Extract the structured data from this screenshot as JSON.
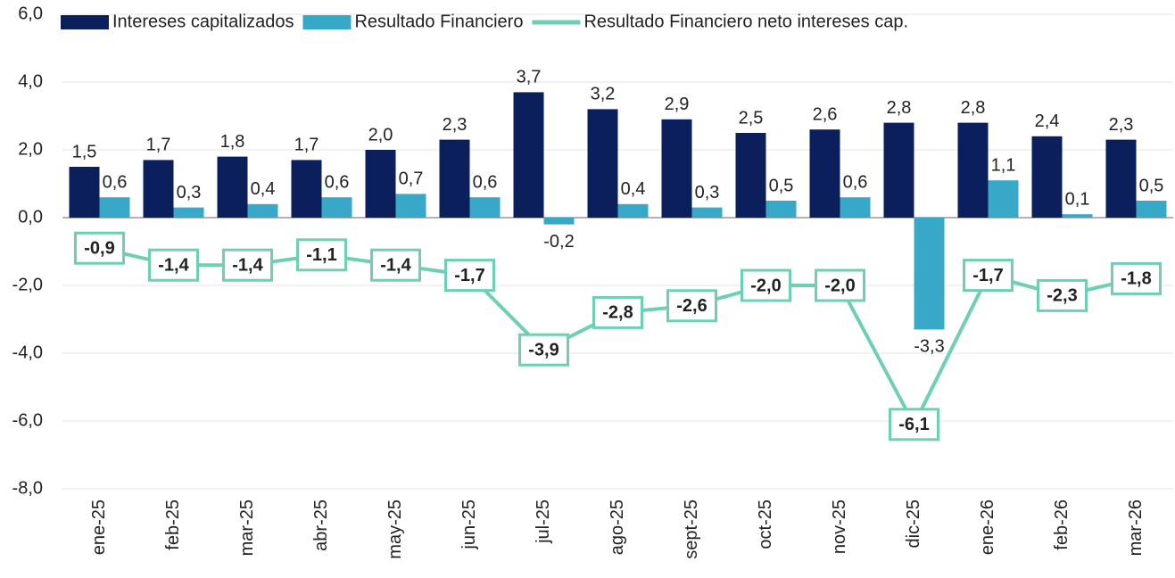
{
  "chart_data": {
    "type": "bar",
    "categories": [
      "ene-25",
      "feb-25",
      "mar-25",
      "abr-25",
      "may-25",
      "jun-25",
      "jul-25",
      "ago-25",
      "sept-25",
      "oct-25",
      "nov-25",
      "dic-25",
      "ene-26",
      "feb-26",
      "mar-26"
    ],
    "series": [
      {
        "name": "Intereses capitalizados",
        "type": "bar",
        "color": "#0b1f5c",
        "values": [
          1.5,
          1.7,
          1.8,
          1.7,
          2.0,
          2.3,
          3.7,
          3.2,
          2.9,
          2.5,
          2.6,
          2.8,
          2.8,
          2.4,
          2.3
        ],
        "value_labels": [
          "1,5",
          "1,7",
          "1,8",
          "1,7",
          "2,0",
          "2,3",
          "3,7",
          "3,2",
          "2,9",
          "2,5",
          "2,6",
          "2,8",
          "2,8",
          "2,4",
          "2,3"
        ]
      },
      {
        "name": "Resultado Financiero",
        "type": "bar",
        "color": "#38a8c9",
        "values": [
          0.6,
          0.3,
          0.4,
          0.6,
          0.7,
          0.6,
          -0.2,
          0.4,
          0.3,
          0.5,
          0.6,
          -3.3,
          1.1,
          0.1,
          0.5
        ],
        "value_labels": [
          "0,6",
          "0,3",
          "0,4",
          "0,6",
          "0,7",
          "0,6",
          "-0,2",
          "0,4",
          "0,3",
          "0,5",
          "0,6",
          "-3,3",
          "1,1",
          "0,1",
          "0,5"
        ]
      },
      {
        "name": "Resultado Financiero neto intereses cap.",
        "type": "line",
        "color": "#6dcfb4",
        "values": [
          -0.9,
          -1.4,
          -1.4,
          -1.1,
          -1.4,
          -1.7,
          -3.9,
          -2.8,
          -2.6,
          -2.0,
          -2.0,
          -6.1,
          -1.7,
          -2.3,
          -1.8
        ],
        "value_labels": [
          "-0,9",
          "-1,4",
          "-1,4",
          "-1,1",
          "-1,4",
          "-1,7",
          "-3,9",
          "-2,8",
          "-2,6",
          "-2,0",
          "-2,0",
          "-6,1",
          "-1,7",
          "-2,3",
          "-1,8"
        ]
      }
    ],
    "ylim": [
      -8,
      6
    ],
    "yticks": [
      {
        "value": -8,
        "label": "-8,0"
      },
      {
        "value": -6,
        "label": "-6,0"
      },
      {
        "value": -4,
        "label": "-4,0"
      },
      {
        "value": -2,
        "label": "-2,0"
      },
      {
        "value": 0,
        "label": "0,0"
      },
      {
        "value": 2,
        "label": "2,0"
      },
      {
        "value": 4,
        "label": "4,0"
      },
      {
        "value": 6,
        "label": "6,0"
      }
    ],
    "grid": true,
    "legend": "top"
  }
}
